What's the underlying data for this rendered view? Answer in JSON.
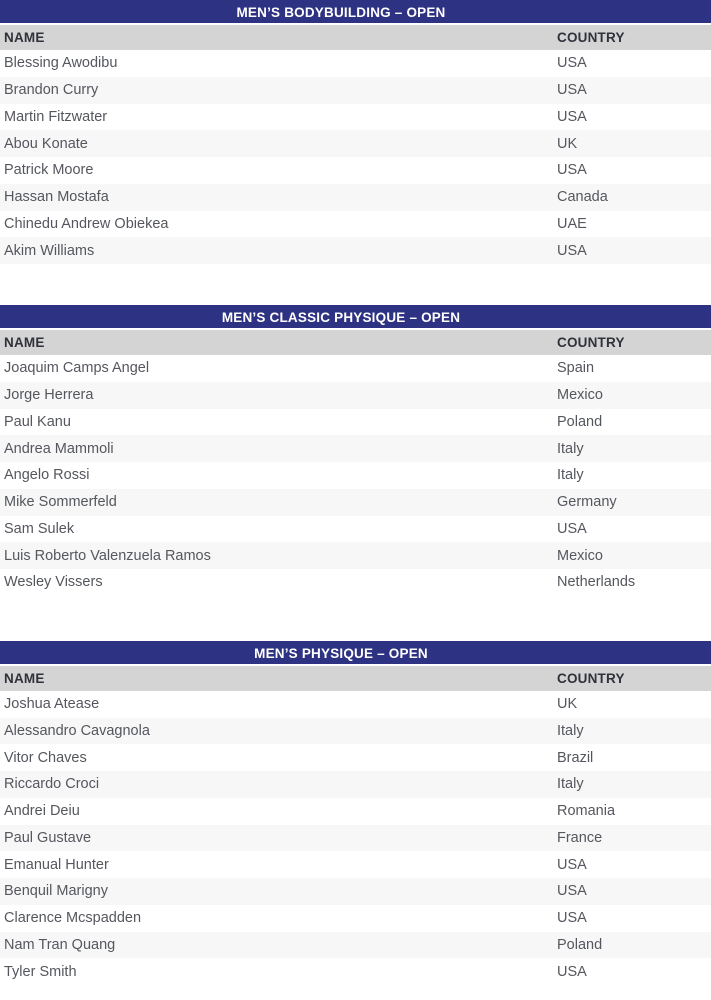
{
  "colors": {
    "title_bar_bg": "#2e3282",
    "title_text": "#ffffff",
    "header_bg": "#d4d4d4",
    "header_text": "#2f323a",
    "row_stripe_bg": "#f7f7f7",
    "row_bg": "#ffffff",
    "body_text": "#55575e"
  },
  "tables": [
    {
      "title": "MEN’S BODYBUILDING – OPEN",
      "columns": {
        "name": "NAME",
        "country": "COUNTRY"
      },
      "rows": [
        {
          "name": "Blessing Awodibu",
          "country": "USA"
        },
        {
          "name": "Brandon Curry",
          "country": "USA"
        },
        {
          "name": "Martin Fitzwater",
          "country": "USA"
        },
        {
          "name": "Abou Konate",
          "country": "UK"
        },
        {
          "name": "Patrick Moore",
          "country": "USA"
        },
        {
          "name": "Hassan Mostafa",
          "country": "Canada"
        },
        {
          "name": "Chinedu Andrew Obiekea",
          "country": "UAE"
        },
        {
          "name": "Akim Williams",
          "country": "USA"
        }
      ]
    },
    {
      "title": "MEN’S CLASSIC PHYSIQUE – OPEN",
      "columns": {
        "name": "NAME",
        "country": "COUNTRY"
      },
      "rows": [
        {
          "name": "Joaquim Camps Angel",
          "country": "Spain"
        },
        {
          "name": "Jorge Herrera",
          "country": "Mexico"
        },
        {
          "name": "Paul Kanu",
          "country": "Poland"
        },
        {
          "name": "Andrea Mammoli",
          "country": "Italy"
        },
        {
          "name": "Angelo Rossi",
          "country": "Italy"
        },
        {
          "name": "Mike Sommerfeld",
          "country": "Germany"
        },
        {
          "name": "Sam Sulek",
          "country": "USA"
        },
        {
          "name": "Luis Roberto Valenzuela Ramos",
          "country": "Mexico"
        },
        {
          "name": "Wesley Vissers",
          "country": "Netherlands"
        }
      ]
    },
    {
      "title": "MEN’S PHYSIQUE – OPEN",
      "columns": {
        "name": "NAME",
        "country": "COUNTRY"
      },
      "rows": [
        {
          "name": "Joshua Atease",
          "country": "UK"
        },
        {
          "name": "Alessandro Cavagnola",
          "country": "Italy"
        },
        {
          "name": "Vitor Chaves",
          "country": "Brazil"
        },
        {
          "name": "Riccardo Croci",
          "country": "Italy"
        },
        {
          "name": "Andrei Deiu",
          "country": "Romania"
        },
        {
          "name": "Paul Gustave",
          "country": "France"
        },
        {
          "name": "Emanual Hunter",
          "country": "USA"
        },
        {
          "name": "Benquil Marigny",
          "country": "USA"
        },
        {
          "name": "Clarence Mcspadden",
          "country": "USA"
        },
        {
          "name": "Nam Tran Quang",
          "country": "Poland"
        },
        {
          "name": "Tyler Smith",
          "country": "USA"
        }
      ]
    }
  ]
}
